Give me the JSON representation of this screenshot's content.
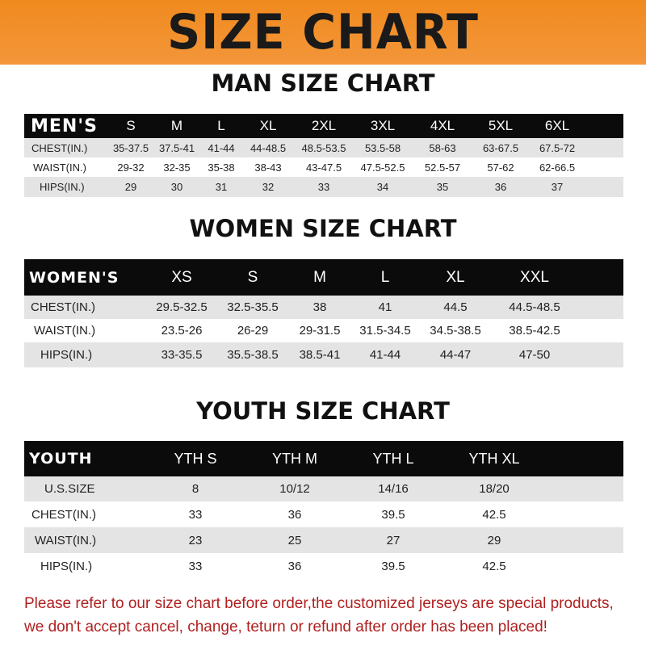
{
  "title": "SIZE CHART",
  "men": {
    "heading": "MAN SIZE CHART",
    "label": "MEN'S",
    "sizes": [
      "S",
      "M",
      "L",
      "XL",
      "2XL",
      "3XL",
      "4XL",
      "5XL",
      "6XL"
    ],
    "rows": [
      {
        "label": "CHEST(IN.)",
        "values": [
          "35-37.5",
          "37.5-41",
          "41-44",
          "44-48.5",
          "48.5-53.5",
          "53.5-58",
          "58-63",
          "63-67.5",
          "67.5-72"
        ]
      },
      {
        "label": "WAIST(IN.)",
        "values": [
          "29-32",
          "32-35",
          "35-38",
          "38-43",
          "43-47.5",
          "47.5-52.5",
          "52.5-57",
          "57-62",
          "62-66.5"
        ]
      },
      {
        "label": "HIPS(IN.)",
        "values": [
          "29",
          "30",
          "31",
          "32",
          "33",
          "34",
          "35",
          "36",
          "37"
        ]
      }
    ]
  },
  "women": {
    "heading": "WOMEN SIZE CHART",
    "label": "WOMEN'S",
    "sizes": [
      "XS",
      "S",
      "M",
      "L",
      "XL",
      "XXL"
    ],
    "rows": [
      {
        "label": "CHEST(IN.)",
        "values": [
          "29.5-32.5",
          "32.5-35.5",
          "38",
          "41",
          "44.5",
          "44.5-48.5"
        ]
      },
      {
        "label": "WAIST(IN.)",
        "values": [
          "23.5-26",
          "26-29",
          "29-31.5",
          "31.5-34.5",
          "34.5-38.5",
          "38.5-42.5"
        ]
      },
      {
        "label": "HIPS(IN.)",
        "values": [
          "33-35.5",
          "35.5-38.5",
          "38.5-41",
          "41-44",
          "44-47",
          "47-50"
        ]
      }
    ]
  },
  "youth": {
    "heading": "YOUTH SIZE CHART",
    "label": "YOUTH",
    "sizes": [
      "YTH S",
      "YTH M",
      "YTH L",
      "YTH XL"
    ],
    "rows": [
      {
        "label": "U.S.SIZE",
        "values": [
          "8",
          "10/12",
          "14/16",
          "18/20"
        ]
      },
      {
        "label": "CHEST(IN.)",
        "values": [
          "33",
          "36",
          "39.5",
          "42.5"
        ]
      },
      {
        "label": "WAIST(IN.)",
        "values": [
          "23",
          "25",
          "27",
          "29"
        ]
      },
      {
        "label": "HIPS(IN.)",
        "values": [
          "33",
          "36",
          "39.5",
          "42.5"
        ]
      }
    ]
  },
  "notice": {
    "line1": "Please refer to our size chart before order,the customized jerseys are special products,",
    "line2": "we don't accept cancel, change, teturn or refund after order has been placed!"
  },
  "colors": {
    "banner": "#f08a1e",
    "header_row": "#0b0b0b",
    "stripe": "#e4e4e4",
    "notice": "#b02020"
  }
}
